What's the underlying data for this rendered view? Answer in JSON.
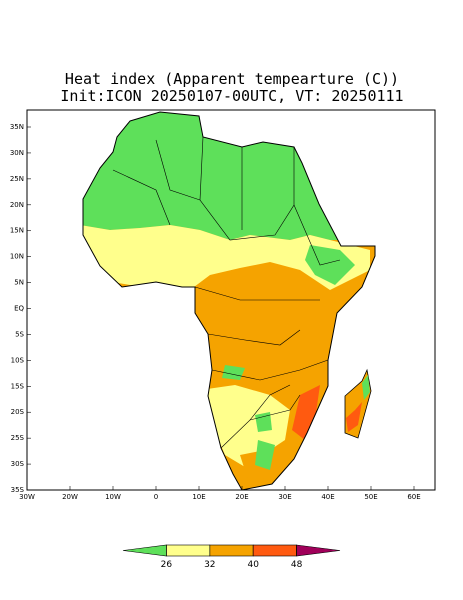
{
  "header": {
    "title": "Heat index (Apparent tempearture (C))",
    "subtitle": "Init:ICON 20250107-00UTC, VT: 20250111"
  },
  "map": {
    "lat_labels": [
      "35N",
      "30N",
      "25N",
      "20N",
      "15N",
      "10N",
      "5N",
      "EQ",
      "5S",
      "10S",
      "15S",
      "20S",
      "25S",
      "30S",
      "35S"
    ],
    "lon_labels": [
      "30W",
      "20W",
      "10W",
      "0",
      "10E",
      "20E",
      "30E",
      "40E",
      "50E",
      "60E"
    ]
  },
  "colorbar": {
    "ticks": [
      26,
      32,
      40,
      48
    ],
    "colors": [
      "#5ee05a",
      "#ffff8c",
      "#f5a300",
      "#ff5a10",
      "#a0005a"
    ]
  }
}
